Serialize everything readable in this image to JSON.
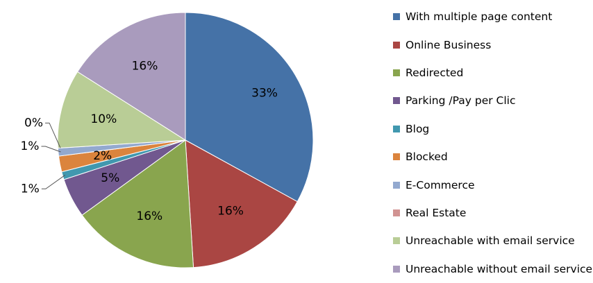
{
  "chart_data": {
    "type": "pie",
    "title": "",
    "legend_position": "right",
    "slices": [
      {
        "label": "With multiple page content",
        "value": 33,
        "value_label": "33%",
        "color": "#4572A7"
      },
      {
        "label": "Online Business",
        "value": 16,
        "value_label": "16%",
        "color": "#AA4643"
      },
      {
        "label": "Redirected",
        "value": 16,
        "value_label": "16%",
        "color": "#89A54E"
      },
      {
        "label": "Parking /Pay per Clic",
        "value": 5,
        "value_label": "5%",
        "color": "#71588F"
      },
      {
        "label": "Blog",
        "value": 1,
        "value_label": "1%",
        "color": "#4198AF"
      },
      {
        "label": "Blocked",
        "value": 2,
        "value_label": "2%",
        "color": "#DB843D"
      },
      {
        "label": "E-Commerce",
        "value": 1,
        "value_label": "1%",
        "color": "#93A9CF"
      },
      {
        "label": "Real Estate",
        "value": 0,
        "value_label": "0%",
        "color": "#D19392"
      },
      {
        "label": "Unreachable with email service",
        "value": 10,
        "value_label": "10%",
        "color": "#B9CD96"
      },
      {
        "label": "Unreachable without email service",
        "value": 16,
        "value_label": "16%",
        "color": "#A99BBD"
      }
    ]
  }
}
